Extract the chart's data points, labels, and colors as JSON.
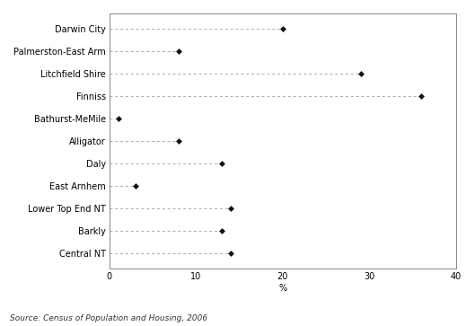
{
  "categories": [
    "Darwin City",
    "Palmerston-East Arm",
    "Litchfield Shire",
    "Finniss",
    "Bathurst-MeMile",
    "Alligator",
    "Daly",
    "East Arnhem",
    "Lower Top End NT",
    "Barkly",
    "Central NT"
  ],
  "values": [
    20,
    8,
    29,
    36,
    1,
    8,
    13,
    3,
    14,
    13,
    14
  ],
  "xlim": [
    0,
    40
  ],
  "xticks": [
    0,
    10,
    20,
    30,
    40
  ],
  "xlabel": "%",
  "source": "Source: Census of Population and Housing, 2006",
  "dot_color": "#111111",
  "line_color": "#aaaaaa",
  "bg_color": "#ffffff",
  "label_fontsize": 7,
  "tick_fontsize": 7,
  "source_fontsize": 6.5
}
